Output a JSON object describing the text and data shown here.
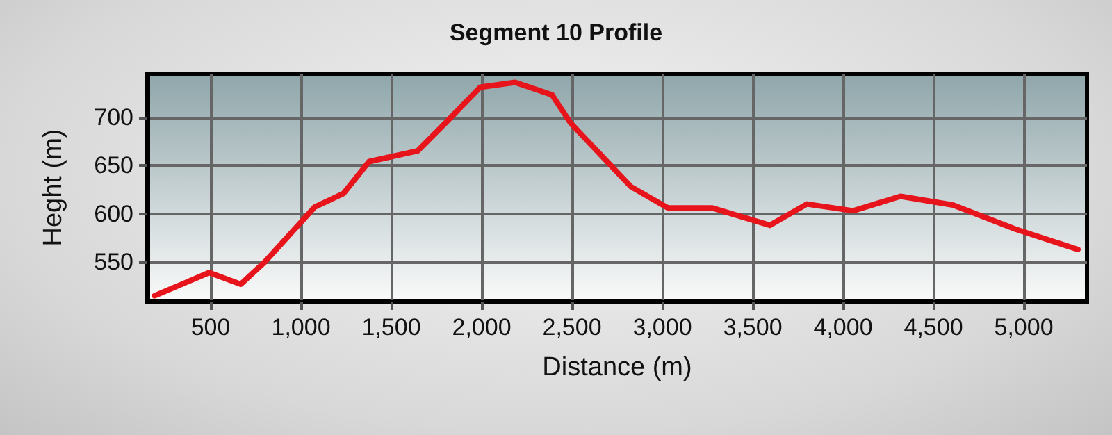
{
  "chart_data": {
    "type": "line",
    "title": "Segment 10 Profile",
    "xlabel": "Distance (m)",
    "ylabel": "Heght (m)",
    "x": [
      190,
      492,
      667,
      800,
      1077,
      1236,
      1377,
      1646,
      1800,
      1992,
      2185,
      2390,
      2492,
      2826,
      3031,
      3274,
      3595,
      3800,
      4056,
      4318,
      4608,
      4954,
      5300
    ],
    "series": [
      {
        "color": "#e8141b",
        "values": [
          515,
          539,
          527,
          550,
          607,
          621,
          654,
          665,
          694,
          731,
          736,
          723,
          694,
          628,
          606,
          606,
          588,
          610,
          603,
          618,
          609,
          584,
          563
        ]
      }
    ],
    "xlim": [
      150,
      5350
    ],
    "xticks": [
      {
        "value": 500,
        "label": "500"
      },
      {
        "value": 1000,
        "label": "1,000"
      },
      {
        "value": 1500,
        "label": "1,500"
      },
      {
        "value": 2000,
        "label": "2,000"
      },
      {
        "value": 2500,
        "label": "2,500"
      },
      {
        "value": 3000,
        "label": "3,000"
      },
      {
        "value": 3500,
        "label": "3,500"
      },
      {
        "value": 4000,
        "label": "4,000"
      },
      {
        "value": 4500,
        "label": "4,500"
      },
      {
        "value": 5000,
        "label": "5,000"
      }
    ],
    "ylim": [
      509,
      745
    ],
    "yticks": [
      550,
      600,
      650,
      700
    ],
    "grid": true,
    "marker": "none",
    "line_style": "solid"
  }
}
